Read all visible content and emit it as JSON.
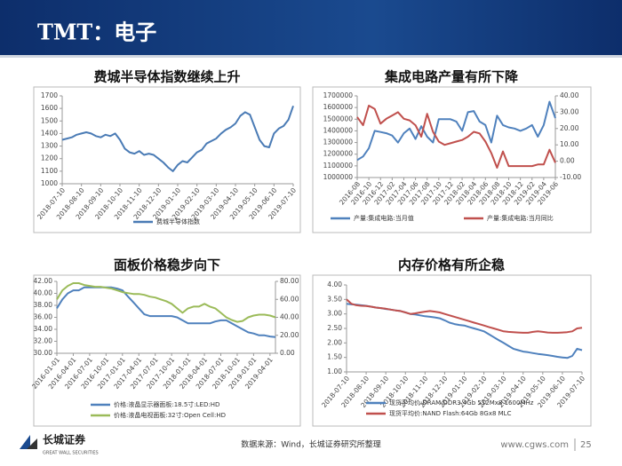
{
  "header": {
    "title": "TMT：电子"
  },
  "footer": {
    "logo_name": "长城证券",
    "logo_en": "GREAT WALL SECURITIES",
    "source": "数据来源：Wind，长城证券研究所整理",
    "url": "www.cgws.com",
    "page": "25"
  },
  "chart_data": [
    {
      "type": "line",
      "title": "费城半导体指数继续上升",
      "categories": [
        "2018-07-10",
        null,
        null,
        null,
        "2018-08-10",
        null,
        null,
        null,
        "2018-09-10",
        null,
        null,
        null,
        "2018-10-10",
        null,
        null,
        null,
        "2018-11-10",
        null,
        null,
        null,
        "2018-12-10",
        null,
        null,
        null,
        "2019-01-10",
        null,
        null,
        null,
        "2019-02-10",
        null,
        null,
        null,
        "2019-03-10",
        null,
        null,
        null,
        "2019-04-10",
        null,
        null,
        null,
        "2019-05-10",
        null,
        null,
        null,
        "2019-06-10",
        null,
        null,
        null,
        "2019-07-10"
      ],
      "series": [
        {
          "name": "费城半导体指数",
          "color": "#4a7bb5",
          "values": [
            1350,
            1360,
            1370,
            1390,
            1400,
            1410,
            1400,
            1380,
            1370,
            1390,
            1380,
            1400,
            1350,
            1280,
            1250,
            1240,
            1260,
            1230,
            1240,
            1230,
            1200,
            1170,
            1130,
            1100,
            1150,
            1180,
            1170,
            1210,
            1250,
            1270,
            1320,
            1340,
            1360,
            1400,
            1430,
            1450,
            1480,
            1540,
            1570,
            1550,
            1450,
            1350,
            1300,
            1290,
            1400,
            1440,
            1460,
            1510,
            1620
          ]
        }
      ],
      "ylim": [
        1000,
        1700
      ],
      "yticks": [
        1000,
        1100,
        1200,
        1300,
        1400,
        1500,
        1600,
        1700
      ]
    },
    {
      "type": "line",
      "title": "集成电路产量有所下降",
      "categories": [
        "2016-08",
        null,
        "2016-10",
        null,
        "2016-12",
        null,
        "2017-02",
        null,
        "2017-04",
        null,
        "2017-06",
        null,
        "2017-08",
        null,
        "2017-10",
        null,
        "2017-12",
        null,
        "2018-02",
        null,
        "2018-04",
        null,
        "2018-06",
        null,
        "2018-08",
        null,
        "2018-10",
        null,
        "2018-12",
        null,
        "2019-02",
        null,
        "2019-04",
        null,
        "2019-06"
      ],
      "series": [
        {
          "name": "产量:集成电路:当月值",
          "color": "#4f81bd",
          "values": [
            1150000,
            1180000,
            1250000,
            1400000,
            1390000,
            1380000,
            1360000,
            1300000,
            1380000,
            1420000,
            1330000,
            1440000,
            1350000,
            1300000,
            1500000,
            1500000,
            1500000,
            1480000,
            1400000,
            1560000,
            1570000,
            1480000,
            1450000,
            1300000,
            1530000,
            1450000,
            1430000,
            1420000,
            1400000,
            1420000,
            1450000,
            1350000,
            1450000,
            1650000,
            1510000
          ]
        },
        {
          "name": "产量:集成电路:当月同比",
          "color": "#c0504d",
          "axis": "y2",
          "values": [
            27,
            22,
            34,
            32,
            23,
            26,
            28,
            30,
            26,
            25,
            22,
            15,
            29,
            18,
            12,
            10,
            11,
            12,
            13,
            15,
            18,
            17,
            12,
            5,
            -4,
            6,
            -3,
            -3,
            -3,
            -3,
            -3,
            -2,
            -2,
            7,
            -1
          ]
        }
      ],
      "ylim": [
        1000000,
        1700000
      ],
      "yticks": [
        1000000,
        1100000,
        1200000,
        1300000,
        1400000,
        1500000,
        1600000,
        1700000
      ],
      "y2lim": [
        -10,
        40
      ],
      "y2ticks": [
        {
          "value": -10,
          "label": "-10.00"
        },
        {
          "value": 0,
          "label": "0.00"
        },
        {
          "value": 10,
          "label": "10.00"
        },
        {
          "value": 20,
          "label": "20.00"
        },
        {
          "value": 30,
          "label": "30.00"
        },
        {
          "value": 40,
          "label": "40.00"
        }
      ]
    },
    {
      "type": "line",
      "title": "面板价格稳步向下",
      "categories": [
        "2016-01-01",
        null,
        null,
        "2016-04-01",
        null,
        null,
        "2016-07-01",
        null,
        null,
        "2016-10-01",
        null,
        null,
        "2017-01-01",
        null,
        null,
        "2017-04-01",
        null,
        null,
        "2017-07-01",
        null,
        null,
        "2017-10-01",
        null,
        null,
        "2018-01-01",
        null,
        null,
        "2018-04-01",
        null,
        null,
        "2018-07-01",
        null,
        null,
        "2018-10-01",
        null,
        null,
        "2019-01-01",
        null,
        null,
        "2019-04-01",
        null
      ],
      "series": [
        {
          "name": "价格:液晶显示器面板:18.5寸:LED:HD",
          "color": "#4f81bd",
          "values": [
            37.5,
            39,
            40,
            40.5,
            40.5,
            41,
            41,
            41,
            41,
            41,
            41,
            40.8,
            40.5,
            39.5,
            38.5,
            37.5,
            36.5,
            36.2,
            36.2,
            36.2,
            36.2,
            36.2,
            36,
            35.5,
            35,
            35,
            35,
            35,
            35,
            35.3,
            35.5,
            35.5,
            35,
            34.5,
            34,
            33.5,
            33.3,
            33,
            33,
            32.8,
            32.7
          ]
        },
        {
          "name": "价格:液晶电视面板:32寸:Open Cell:HD",
          "color": "#9bbb59",
          "axis": "y2",
          "values": [
            60,
            70,
            75,
            78,
            78,
            76,
            75,
            74,
            74,
            73,
            72,
            70,
            68,
            67,
            66,
            66,
            65,
            63,
            62,
            60,
            58,
            55,
            50,
            45,
            50,
            52,
            52,
            55,
            52,
            50,
            45,
            40,
            37,
            35,
            36,
            40,
            42,
            43,
            43,
            42,
            40
          ]
        }
      ],
      "ylim": [
        30,
        42
      ],
      "yticks": [
        {
          "value": 30,
          "label": "30.00"
        },
        {
          "value": 32,
          "label": "32.00"
        },
        {
          "value": 34,
          "label": "34.00"
        },
        {
          "value": 36,
          "label": "36.00"
        },
        {
          "value": 38,
          "label": "38.00"
        },
        {
          "value": 40,
          "label": "40.00"
        },
        {
          "value": 42,
          "label": "42.00"
        }
      ],
      "y2lim": [
        0,
        80
      ],
      "y2ticks": [
        {
          "value": 0,
          "label": "0.00"
        },
        {
          "value": 20,
          "label": "20.00"
        },
        {
          "value": 40,
          "label": "40.00"
        },
        {
          "value": 60,
          "label": "60.00"
        },
        {
          "value": 80,
          "label": "80.00"
        }
      ]
    },
    {
      "type": "line",
      "title": "内存价格有所企稳",
      "categories": [
        "2018-07-10",
        null,
        null,
        null,
        "2018-08-10",
        null,
        null,
        null,
        "2018-09-10",
        null,
        null,
        null,
        "2018-10-10",
        null,
        null,
        null,
        "2018-11-10",
        null,
        null,
        null,
        "2018-12-10",
        null,
        null,
        null,
        "2019-01-10",
        null,
        null,
        null,
        "2019-02-10",
        null,
        null,
        null,
        "2019-03-10",
        null,
        null,
        null,
        "2019-04-10",
        null,
        null,
        null,
        "2019-05-10",
        null,
        null,
        null,
        "2019-06-10",
        null,
        null,
        null,
        "2019-07-10"
      ],
      "series": [
        {
          "name": "现货平均价:DRAM:DDR3 4Gb 512Mx8 1600MHz",
          "color": "#4f81bd",
          "values": [
            3.35,
            3.33,
            3.32,
            3.3,
            3.28,
            3.25,
            3.22,
            3.2,
            3.17,
            3.15,
            3.12,
            3.1,
            3.05,
            3.0,
            2.98,
            2.95,
            2.92,
            2.9,
            2.88,
            2.85,
            2.78,
            2.7,
            2.65,
            2.62,
            2.6,
            2.55,
            2.5,
            2.45,
            2.4,
            2.3,
            2.2,
            2.1,
            2.0,
            1.9,
            1.8,
            1.75,
            1.7,
            1.68,
            1.65,
            1.62,
            1.6,
            1.58,
            1.55,
            1.52,
            1.5,
            1.48,
            1.55,
            1.8,
            1.75
          ]
        },
        {
          "name": "现货平均价:NAND Flash:64Gb 8Gx8 MLC",
          "color": "#c0504d",
          "values": [
            3.5,
            3.35,
            3.3,
            3.28,
            3.27,
            3.25,
            3.22,
            3.2,
            3.18,
            3.15,
            3.12,
            3.1,
            3.05,
            3.0,
            3.02,
            3.05,
            3.08,
            3.1,
            3.08,
            3.05,
            3.0,
            2.95,
            2.9,
            2.85,
            2.8,
            2.75,
            2.7,
            2.65,
            2.6,
            2.55,
            2.5,
            2.45,
            2.4,
            2.38,
            2.37,
            2.36,
            2.35,
            2.35,
            2.38,
            2.4,
            2.38,
            2.36,
            2.35,
            2.35,
            2.36,
            2.37,
            2.4,
            2.5,
            2.52
          ]
        }
      ],
      "ylim": [
        1,
        4
      ],
      "yticks": [
        {
          "value": 1,
          "label": "1.00"
        },
        {
          "value": 1.5,
          "label": "1.50"
        },
        {
          "value": 2,
          "label": "2.00"
        },
        {
          "value": 2.5,
          "label": "2.50"
        },
        {
          "value": 3,
          "label": "3.00"
        },
        {
          "value": 3.5,
          "label": "3.50"
        },
        {
          "value": 4,
          "label": "4.00"
        }
      ]
    }
  ]
}
